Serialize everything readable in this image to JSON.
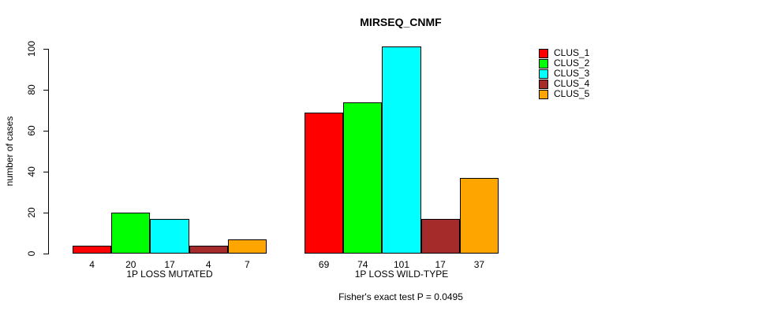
{
  "chart_data": {
    "type": "bar",
    "title": "MIRSEQ_CNMF",
    "xlabel": "",
    "ylabel": "number of cases",
    "ylim": [
      0,
      100
    ],
    "yticks": [
      0,
      20,
      40,
      60,
      80,
      100
    ],
    "grid": false,
    "categories": [
      "1P LOSS MUTATED",
      "1P LOSS WILD-TYPE"
    ],
    "series": [
      {
        "name": "CLUS_1",
        "color": "#ff0000",
        "values": [
          4,
          69
        ]
      },
      {
        "name": "CLUS_2",
        "color": "#00ff00",
        "values": [
          20,
          74
        ]
      },
      {
        "name": "CLUS_3",
        "color": "#00ffff",
        "values": [
          17,
          101
        ]
      },
      {
        "name": "CLUS_4",
        "color": "#a52a2a",
        "values": [
          4,
          17
        ]
      },
      {
        "name": "CLUS_5",
        "color": "#ffa500",
        "values": [
          7,
          37
        ]
      }
    ],
    "bar_value_labels": [
      [
        4,
        20,
        17,
        4,
        7
      ],
      [
        69,
        74,
        101,
        17,
        37
      ]
    ],
    "legend_position": "top-right",
    "legend_entries": [
      "CLUS_1",
      "CLUS_2",
      "CLUS_3",
      "CLUS_4",
      "CLUS_5"
    ],
    "footnote": "Fisher's exact test P = 0.0495",
    "axis_color": "#000000",
    "background": "#ffffff"
  }
}
